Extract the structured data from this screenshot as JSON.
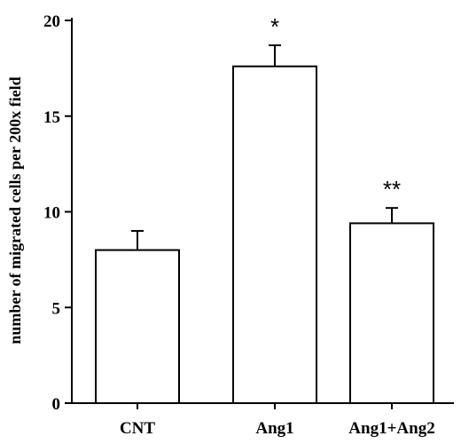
{
  "chart_data": {
    "type": "bar",
    "categories": [
      "CNT",
      "Ang1",
      "Ang1+Ang2"
    ],
    "values": [
      8.0,
      17.6,
      9.4
    ],
    "errors": [
      1.0,
      1.1,
      0.8
    ],
    "annotations": [
      "",
      "*",
      "**"
    ],
    "title": "",
    "xlabel": "",
    "ylabel": "number of migrated cells per 200x field",
    "ylim": [
      0,
      20
    ],
    "yticks": [
      0,
      5,
      10,
      15,
      20
    ],
    "yticks_labels": [
      "0",
      "5",
      "10",
      "15",
      "20"
    ],
    "grid": false,
    "legend": "none",
    "bar_fill": "#ffffff",
    "bar_stroke": "#000000"
  }
}
